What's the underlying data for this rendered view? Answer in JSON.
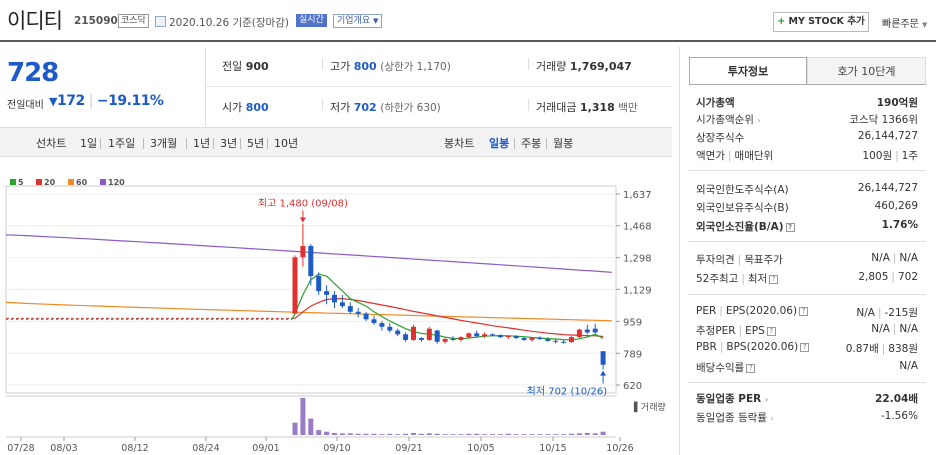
{
  "header": {
    "company_name": "이디티",
    "code": "215090",
    "market_badge": "코스닥",
    "date_text": "2020.10.26 기준(장마감)",
    "realtime_badge": "실시간",
    "company_info_badge": "기업개요",
    "mystock_plus": "+",
    "mystock_label": "MY STOCK 추가",
    "quick_order": "빠른주문"
  },
  "summary": {
    "price": "728",
    "change_label": "전일대비",
    "change_arrow": "▼",
    "change_value": "172",
    "change_rate": "−19.11%",
    "prev_label": "전일",
    "prev_value": "900",
    "high_label": "고가",
    "high_value": "800",
    "upper_limit": "(상한가 1,170)",
    "volume_label": "거래량",
    "volume_value": "1,769,047",
    "open_label": "시가",
    "open_value": "800",
    "low_label": "저가",
    "low_value": "702",
    "lower_limit": "(하한가 630)",
    "amount_label": "거래대금",
    "amount_value": "1,318",
    "amount_unit": "백만"
  },
  "period_bar": {
    "line_chart": "선차트",
    "line_periods": [
      "1일",
      "1주일",
      "3개월",
      "1년",
      "3년",
      "5년",
      "10년"
    ],
    "candle_chart": "봉차트",
    "candle_periods": [
      "일봉",
      "주봉",
      "월봉"
    ],
    "selected_candle": "일봉"
  },
  "chart_data": {
    "type": "candlestick",
    "legend": [
      {
        "name": "5",
        "color": "#2ca02c"
      },
      {
        "name": "20",
        "color": "#e03030"
      },
      {
        "name": "60",
        "color": "#f08a24"
      },
      {
        "name": "120",
        "color": "#8a5bc6"
      }
    ],
    "y_ticks": [
      "1,637",
      "1,468",
      "1,298",
      "1,129",
      "959",
      "789",
      "620"
    ],
    "ylim": [
      620,
      1637
    ],
    "x_ticks": [
      "07/28",
      "08/03",
      "08/12",
      "08/24",
      "09/01",
      "09/10",
      "09/21",
      "10/05",
      "10/15",
      "10/26"
    ],
    "annotation_high": "최고 1,480 (09/08)",
    "annotation_low": "최저 702 (10/26)",
    "volume_label": "거래량",
    "flat_price": 975,
    "candles": [
      {
        "o": 1000,
        "h": 1310,
        "l": 1000,
        "c": 1300
      },
      {
        "o": 1300,
        "h": 1480,
        "l": 1250,
        "c": 1360
      },
      {
        "o": 1360,
        "h": 1370,
        "l": 1150,
        "c": 1200
      },
      {
        "o": 1200,
        "h": 1220,
        "l": 1100,
        "c": 1120
      },
      {
        "o": 1120,
        "h": 1150,
        "l": 1050,
        "c": 1100
      },
      {
        "o": 1100,
        "h": 1120,
        "l": 1030,
        "c": 1060
      },
      {
        "o": 1060,
        "h": 1100,
        "l": 1030,
        "c": 1040
      },
      {
        "o": 1040,
        "h": 1060,
        "l": 1000,
        "c": 1010
      },
      {
        "o": 1010,
        "h": 1030,
        "l": 980,
        "c": 1000
      },
      {
        "o": 1000,
        "h": 1010,
        "l": 960,
        "c": 970
      },
      {
        "o": 970,
        "h": 990,
        "l": 940,
        "c": 950
      },
      {
        "o": 950,
        "h": 960,
        "l": 910,
        "c": 930
      },
      {
        "o": 930,
        "h": 950,
        "l": 900,
        "c": 910
      },
      {
        "o": 910,
        "h": 920,
        "l": 880,
        "c": 890
      },
      {
        "o": 890,
        "h": 900,
        "l": 850,
        "c": 860
      },
      {
        "o": 860,
        "h": 940,
        "l": 855,
        "c": 930
      },
      {
        "o": 870,
        "h": 875,
        "l": 850,
        "c": 860
      },
      {
        "o": 860,
        "h": 930,
        "l": 855,
        "c": 920
      },
      {
        "o": 910,
        "h": 915,
        "l": 840,
        "c": 850
      },
      {
        "o": 850,
        "h": 870,
        "l": 840,
        "c": 865
      },
      {
        "o": 865,
        "h": 880,
        "l": 855,
        "c": 860
      },
      {
        "o": 860,
        "h": 880,
        "l": 850,
        "c": 875
      },
      {
        "o": 875,
        "h": 900,
        "l": 870,
        "c": 895
      },
      {
        "o": 895,
        "h": 910,
        "l": 875,
        "c": 880
      },
      {
        "o": 880,
        "h": 900,
        "l": 870,
        "c": 890
      },
      {
        "o": 890,
        "h": 895,
        "l": 880,
        "c": 885
      },
      {
        "o": 885,
        "h": 890,
        "l": 870,
        "c": 875
      },
      {
        "o": 875,
        "h": 885,
        "l": 865,
        "c": 880
      },
      {
        "o": 880,
        "h": 885,
        "l": 865,
        "c": 870
      },
      {
        "o": 870,
        "h": 875,
        "l": 855,
        "c": 860
      },
      {
        "o": 860,
        "h": 875,
        "l": 850,
        "c": 870
      },
      {
        "o": 870,
        "h": 880,
        "l": 860,
        "c": 865
      },
      {
        "o": 865,
        "h": 875,
        "l": 850,
        "c": 855
      },
      {
        "o": 855,
        "h": 865,
        "l": 840,
        "c": 850
      },
      {
        "o": 850,
        "h": 860,
        "l": 840,
        "c": 848
      },
      {
        "o": 848,
        "h": 880,
        "l": 845,
        "c": 875
      },
      {
        "o": 875,
        "h": 920,
        "l": 870,
        "c": 915
      },
      {
        "o": 915,
        "h": 940,
        "l": 890,
        "c": 900
      },
      {
        "o": 920,
        "h": 945,
        "l": 895,
        "c": 900
      },
      {
        "o": 800,
        "h": 800,
        "l": 702,
        "c": 728
      }
    ],
    "ma5": [
      1000,
      1100,
      1180,
      1210,
      1200,
      1160,
      1120,
      1080,
      1060,
      1040,
      1010,
      985,
      960,
      940,
      920,
      905,
      895,
      890,
      885,
      875,
      868,
      866,
      870,
      875,
      880,
      882,
      883,
      882,
      880,
      877,
      873,
      870,
      867,
      865,
      862,
      860,
      866,
      875,
      890,
      868
    ],
    "ma20": [
      975,
      1010,
      1040,
      1060,
      1075,
      1080,
      1080,
      1075,
      1070,
      1062,
      1054,
      1046,
      1038,
      1030,
      1021,
      1012,
      1004,
      996,
      988,
      980,
      972,
      964,
      957,
      950,
      943,
      936,
      930,
      924,
      918,
      912,
      906,
      901,
      896,
      892,
      888,
      886,
      884,
      883,
      882,
      878
    ],
    "ma60_start": 1060,
    "ma60_end": 962,
    "ma120_start": 1420,
    "ma120_end": 1220,
    "volumes": [
      30,
      90,
      40,
      12,
      8,
      5,
      4,
      4,
      3,
      3,
      3,
      2,
      3,
      2,
      3,
      5,
      3,
      4,
      3,
      2,
      2,
      2,
      3,
      3,
      2,
      2,
      2,
      3,
      2,
      2,
      2,
      2,
      2,
      2,
      2,
      3,
      4,
      5,
      4,
      8
    ]
  },
  "invest_panel": {
    "tab_active": "투자정보",
    "tab_inactive": "호가 10단계",
    "market_cap_label": "시가총액",
    "market_cap_value": "190억원",
    "market_cap_rank_label": "시가총액순위",
    "market_cap_rank_value": "코스닥 1366위",
    "shares_label": "상장주식수",
    "shares_value": "26,144,727",
    "par_label": "액면가",
    "par_label2": "매매단위",
    "par_value": "100원",
    "unit_value": "1주",
    "foreign_limit_label": "외국인한도주식수(A)",
    "foreign_limit_value": "26,144,727",
    "foreign_hold_label": "외국인보유주식수(B)",
    "foreign_hold_value": "460,269",
    "foreign_rate_label": "외국인소진율(B/A)",
    "foreign_rate_value": "1.76%",
    "opinion_label": "투자의견",
    "target_label": "목표주가",
    "opinion_value": "N/A",
    "target_value": "N/A",
    "w52_label": "52주최고",
    "w52_low_label": "최저",
    "w52_high": "2,805",
    "w52_low": "702",
    "per_label": "PER",
    "eps_label": "EPS",
    "per_period": "(2020.06)",
    "per_value": "N/A",
    "eps_value": "-215원",
    "est_per_label": "추정PER",
    "est_eps_label": "EPS",
    "est_per_value": "N/A",
    "est_eps_value": "N/A",
    "pbr_label": "PBR",
    "bps_label": "BPS",
    "pbr_period": "(2020.06)",
    "pbr_value": "0.87배",
    "bps_value": "838원",
    "div_label": "배당수익률",
    "div_value": "N/A",
    "sector_per_label": "동일업종 PER",
    "sector_per_value": "22.04배",
    "sector_rate_label": "동일업종 등락률",
    "sector_rate_value": "-1.56%"
  }
}
